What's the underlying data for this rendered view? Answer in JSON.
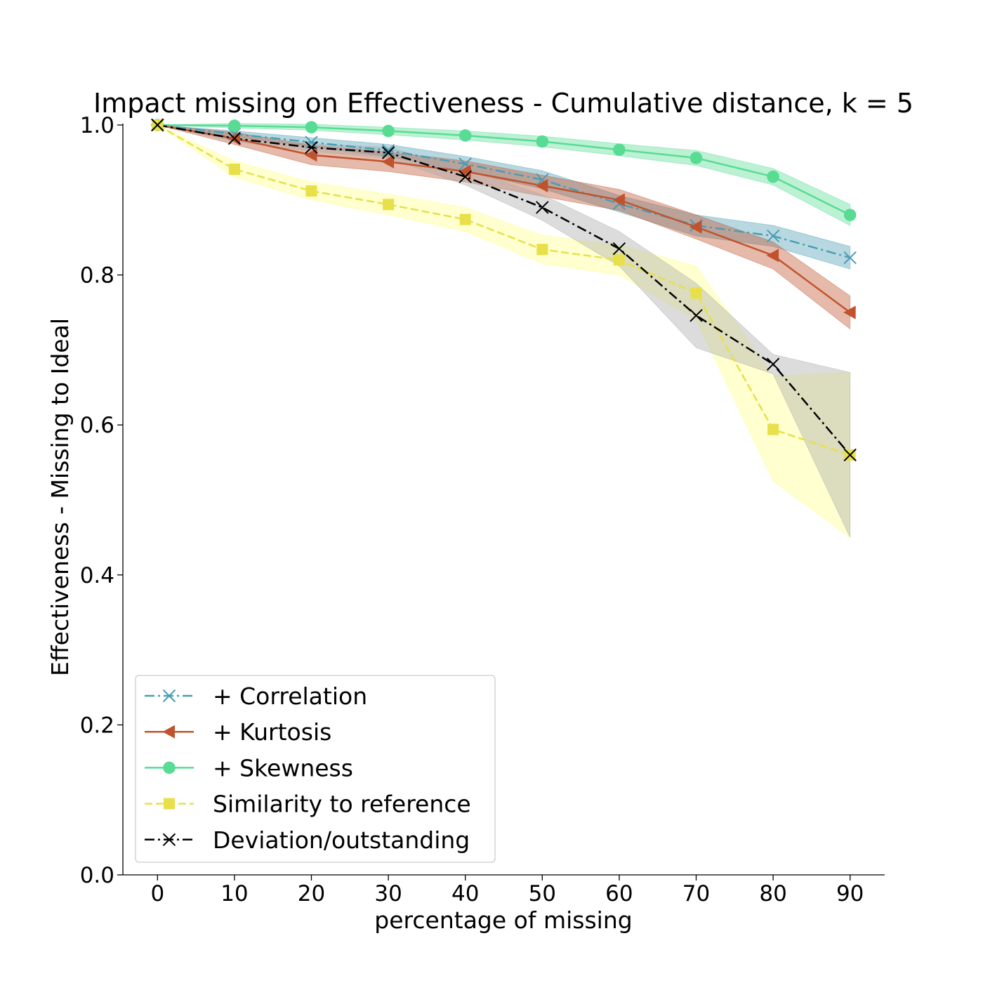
{
  "chart_data": {
    "type": "line",
    "title": "Impact missing on Effectiveness - Cumulative distance, k = 5",
    "xlabel": "percentage of missing",
    "ylabel": "Effectiveness - Missing to Ideal",
    "x": [
      0,
      10,
      20,
      30,
      40,
      50,
      60,
      70,
      80,
      90
    ],
    "xlim": [
      -4.5,
      94.5
    ],
    "ylim": [
      0.0,
      1.0
    ],
    "x_ticks": [
      "0",
      "10",
      "20",
      "30",
      "40",
      "50",
      "60",
      "70",
      "80",
      "90"
    ],
    "y_ticks": [
      "0.0",
      "0.2",
      "0.4",
      "0.6",
      "0.8",
      "1.0"
    ],
    "grid": false,
    "legend_position": "lower-left",
    "series": [
      {
        "name": "+ Correlation",
        "color": "#4a9db4",
        "linestyle": "dashdot",
        "marker": "x",
        "values": [
          1.0,
          0.988,
          0.977,
          0.966,
          0.948,
          0.927,
          0.895,
          0.866,
          0.852,
          0.823
        ],
        "lower": [
          1.0,
          0.984,
          0.971,
          0.958,
          0.938,
          0.915,
          0.884,
          0.852,
          0.838,
          0.808
        ],
        "upper": [
          1.0,
          0.992,
          0.983,
          0.974,
          0.958,
          0.939,
          0.906,
          0.88,
          0.866,
          0.838
        ]
      },
      {
        "name": "+ Kurtosis",
        "color": "#c0532e",
        "linestyle": "solid",
        "marker": "triangle-left",
        "values": [
          1.0,
          0.982,
          0.96,
          0.951,
          0.938,
          0.919,
          0.9,
          0.864,
          0.826,
          0.75
        ],
        "lower": [
          1.0,
          0.974,
          0.947,
          0.938,
          0.924,
          0.905,
          0.886,
          0.848,
          0.808,
          0.728
        ],
        "upper": [
          1.0,
          0.99,
          0.973,
          0.964,
          0.952,
          0.933,
          0.914,
          0.88,
          0.844,
          0.772
        ]
      },
      {
        "name": "+ Skewness",
        "color": "#58dc94",
        "linestyle": "solid",
        "marker": "circle",
        "values": [
          1.0,
          0.999,
          0.997,
          0.992,
          0.986,
          0.978,
          0.967,
          0.956,
          0.931,
          0.88
        ],
        "lower": [
          1.0,
          0.996,
          0.993,
          0.987,
          0.98,
          0.971,
          0.959,
          0.946,
          0.92,
          0.866
        ],
        "upper": [
          1.0,
          1.002,
          1.001,
          0.997,
          0.992,
          0.985,
          0.975,
          0.966,
          0.942,
          0.894
        ]
      },
      {
        "name": "Similarity to reference",
        "color": "#e8e04a",
        "band_color": "#ffff88",
        "linestyle": "dashed",
        "marker": "square",
        "values": [
          1.0,
          0.941,
          0.912,
          0.894,
          0.874,
          0.834,
          0.82,
          0.776,
          0.594,
          0.56
        ],
        "lower": [
          1.0,
          0.93,
          0.9,
          0.88,
          0.858,
          0.815,
          0.8,
          0.74,
          0.525,
          0.45
        ],
        "upper": [
          1.0,
          0.952,
          0.924,
          0.908,
          0.89,
          0.853,
          0.84,
          0.812,
          0.665,
          0.67
        ]
      },
      {
        "name": "Deviation/outstanding",
        "color": "#000000",
        "band_color": "#a8a8a8",
        "linestyle": "dashdot",
        "marker": "x",
        "values": [
          1.0,
          0.982,
          0.97,
          0.963,
          0.931,
          0.89,
          0.835,
          0.746,
          0.681,
          0.56
        ],
        "lower": [
          1.0,
          0.978,
          0.965,
          0.956,
          0.92,
          0.873,
          0.812,
          0.703,
          0.668,
          0.45
        ],
        "upper": [
          1.0,
          0.986,
          0.975,
          0.97,
          0.942,
          0.907,
          0.858,
          0.789,
          0.694,
          0.67
        ]
      }
    ]
  }
}
